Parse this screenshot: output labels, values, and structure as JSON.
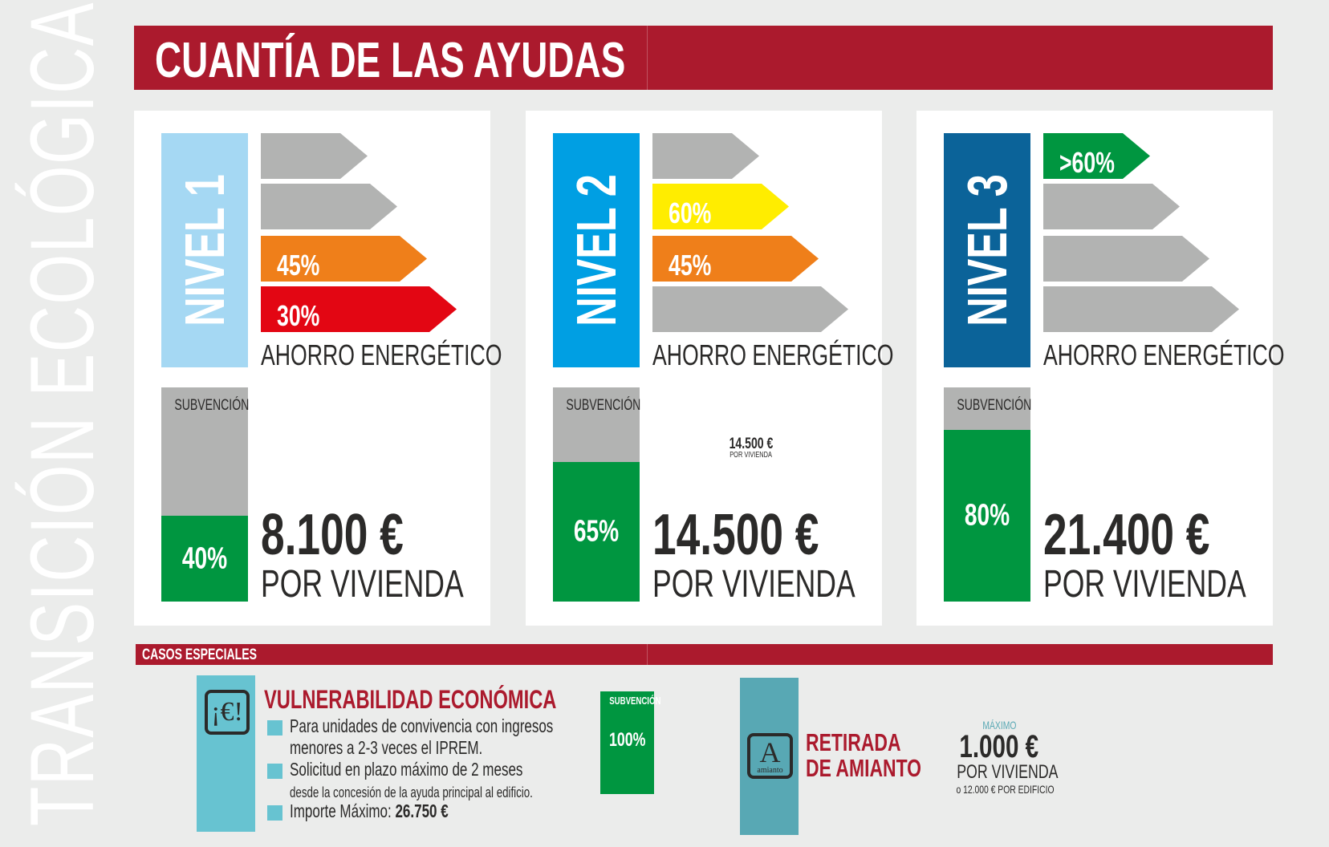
{
  "side_title": "TRANSICIÓN ECOLÓGICA",
  "header": {
    "title": "CUANTÍA DE LAS AYUDAS"
  },
  "colors": {
    "brand_red": "#ab1a2d",
    "green": "#009640",
    "gray": "#b2b3b2",
    "orange": "#ef7f1a",
    "red": "#e30613",
    "yellow": "#ffed00",
    "teal": "#67c3d1"
  },
  "levels": [
    {
      "title": "NIVEL 1",
      "color": "#a5d8f3",
      "arrows": [
        {
          "label": "",
          "color": "#b2b3b2"
        },
        {
          "label": "",
          "color": "#b2b3b2"
        },
        {
          "label": "45%",
          "color": "#ef7f1a"
        },
        {
          "label": "30%",
          "color": "#e30613"
        }
      ],
      "savings_label": "AHORRO ENERGÉTICO",
      "subsidy_label": "SUBVENCIÓN",
      "subsidy_pct": 40,
      "subsidy_text": "40%",
      "amount": "8.100 €",
      "per": "POR VIVIENDA"
    },
    {
      "title": "NIVEL 2",
      "color": "#009fe3",
      "arrows": [
        {
          "label": "",
          "color": "#b2b3b2"
        },
        {
          "label": "60%",
          "color": "#ffed00"
        },
        {
          "label": "45%",
          "color": "#ef7f1a"
        },
        {
          "label": "",
          "color": "#b2b3b2"
        }
      ],
      "savings_label": "AHORRO ENERGÉTICO",
      "subsidy_label": "SUBVENCIÓN",
      "subsidy_pct": 65,
      "subsidy_text": "65%",
      "small_amount": "14.500 €",
      "small_per": "POR VIVIENDA",
      "amount": "14.500 €",
      "per": "POR VIVIENDA"
    },
    {
      "title": "NIVEL 3",
      "color": "#0b6399",
      "arrows": [
        {
          "label": ">60%",
          "color": "#009640"
        },
        {
          "label": "",
          "color": "#b2b3b2"
        },
        {
          "label": "",
          "color": "#b2b3b2"
        },
        {
          "label": "",
          "color": "#b2b3b2"
        }
      ],
      "savings_label": "AHORRO ENERGÉTICO",
      "subsidy_label": "SUBVENCIÓN",
      "subsidy_pct": 80,
      "subsidy_text": "80%",
      "amount": "21.400 €",
      "per": "POR VIVIENDA"
    }
  ],
  "special": {
    "title": "CASOS ESPECIALES",
    "vulnerable": {
      "icon": "euro-exclamation-icon",
      "icon_text": "¡€!",
      "title": "VULNERABILIDAD ECONÓMICA",
      "bullets": [
        {
          "line1": "Para unidades de convivencia con ingresos",
          "line2": "menores a 2-3 veces el IPREM."
        },
        {
          "line1": "Solicitud en plazo máximo de 2 meses",
          "line2": "desde la concesión de la ayuda principal al edificio."
        },
        {
          "line1": "Importe Máximo: ",
          "bold": "26.750 €"
        }
      ],
      "subsidy_label": "SUBVENCIÓN",
      "subsidy_text": "100%"
    },
    "asbestos": {
      "icon": "asbestos-icon",
      "icon_letter": "A",
      "icon_word": "amianto",
      "title1": "RETIRADA",
      "title2": "DE AMIANTO",
      "max_label": "MÁXIMO",
      "amount": "1.000 €",
      "per": "POR VIVIENDA",
      "alt": "o 12.000 € POR EDIFICIO"
    }
  }
}
